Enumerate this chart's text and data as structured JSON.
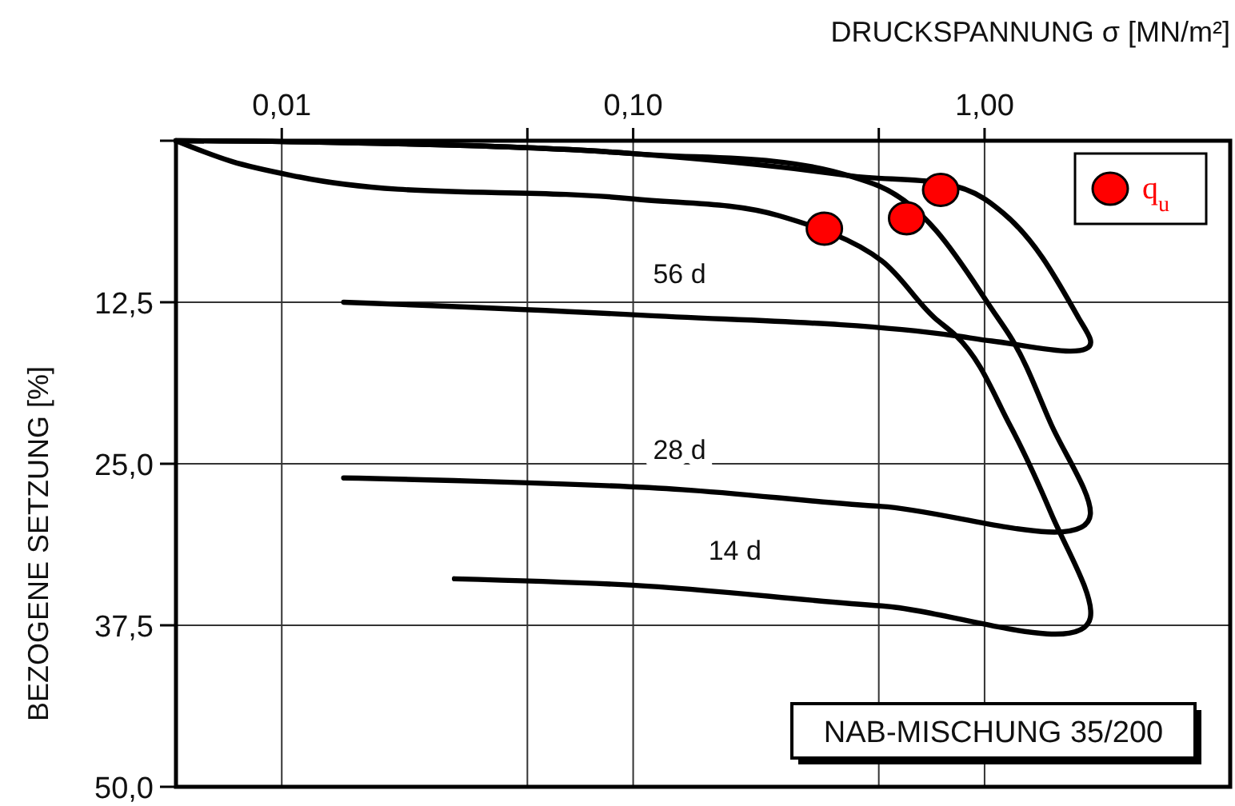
{
  "chart_data": {
    "type": "line",
    "xlabel": "DRUCKSPANNUNG σ [MN/m²]",
    "ylabel": "BEZOGENE SETZUNG [%]",
    "log": "x",
    "xlim": [
      0.005,
      5
    ],
    "xticks": [
      {
        "value": 0.01,
        "label": "0,01"
      },
      {
        "value": 0.05,
        "label": null
      },
      {
        "value": 0.1,
        "label": "0,10"
      },
      {
        "value": 0.5,
        "label": null
      },
      {
        "value": 1,
        "label": "1,00"
      }
    ],
    "ylim": [
      50,
      0
    ],
    "yticks": [
      {
        "value": 0,
        "label": null
      },
      {
        "value": 12.5,
        "label": "12,5"
      },
      {
        "value": 25,
        "label": "25,0"
      },
      {
        "value": 37.5,
        "label": "37,5"
      },
      {
        "value": 50,
        "label": "50,0"
      }
    ],
    "grid": true,
    "legend": "top right",
    "series": [
      {
        "name": "56 d",
        "color": "#000000",
        "x": [
          0.005,
          0.1,
          0.41,
          1.0,
          1.13,
          1.85,
          2.0,
          1.05,
          0.83,
          0.105,
          0.015
        ],
        "values": [
          0,
          1.0,
          2.7,
          4.5,
          5.6,
          13.7,
          15.4,
          15.5,
          15.1,
          13.5,
          12.5
        ]
      },
      {
        "name": "28 d",
        "color": "#000000",
        "x": [
          0.005,
          0.1,
          0.41,
          0.5,
          1.09,
          1.18,
          1.55,
          2.0,
          0.51,
          0.138,
          0.015
        ],
        "values": [
          0,
          1.0,
          2.7,
          3.5,
          13.7,
          15.1,
          22.0,
          28.9,
          28.3,
          27.0,
          26.1
        ]
      },
      {
        "name": "14 d",
        "color": "#000000",
        "x": [
          0.005,
          0.0072,
          0.0112,
          0.1,
          0.26,
          0.51,
          0.72,
          0.83,
          1.18,
          1.55,
          2.0,
          0.51,
          0.1,
          0.031
        ],
        "values": [
          0,
          1.6,
          2.8,
          4.5,
          5.8,
          9.3,
          13.7,
          15.1,
          22.0,
          28.9,
          36.9,
          36.0,
          34.4,
          33.9
        ]
      },
      {
        "name": "q$_{u}$",
        "type": "scatter",
        "color": "#ff0000",
        "x": [
          0.75,
          0.6,
          0.35
        ],
        "values": [
          3.8,
          6.0,
          6.8
        ]
      }
    ],
    "annotations": [
      "NAB-MISCHUNG 35/200"
    ]
  }
}
